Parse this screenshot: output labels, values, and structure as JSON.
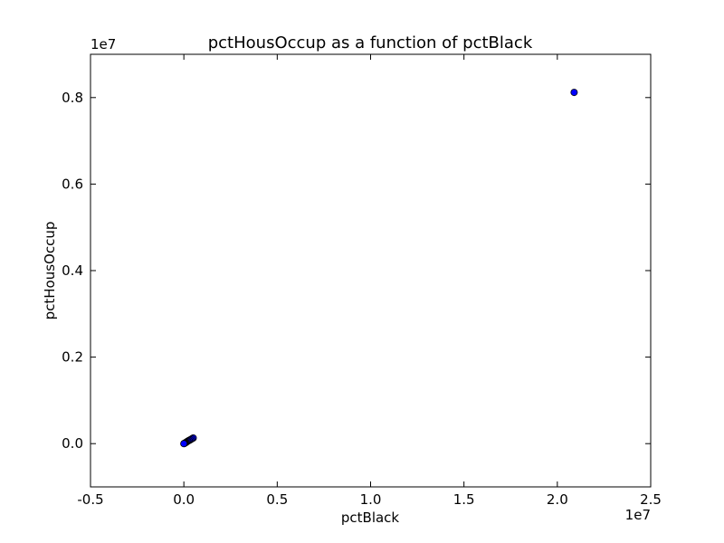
{
  "chart_data": {
    "type": "scatter",
    "title": "pctHousOccup as a function of pctBlack",
    "xlabel": "pctBlack",
    "ylabel": "pctHousOccup",
    "x_scale_label": "1e7",
    "y_scale_label": "1e7",
    "x_scale": 10000000,
    "y_scale": 10000000,
    "xlim": [
      -5000000,
      25000000
    ],
    "ylim": [
      -1000000,
      9000000
    ],
    "x_ticks": [
      -0.5,
      0.0,
      0.5,
      1.0,
      1.5,
      2.0,
      2.5
    ],
    "y_ticks": [
      0.0,
      0.2,
      0.4,
      0.6,
      0.8
    ],
    "grid": false,
    "marker_color": "#0000ff",
    "points": [
      {
        "x": 20900000,
        "y": 8120000
      },
      {
        "x": 500000,
        "y": 130000
      },
      {
        "x": 420000,
        "y": 110000
      },
      {
        "x": 350000,
        "y": 90000
      },
      {
        "x": 280000,
        "y": 75000
      },
      {
        "x": 220000,
        "y": 60000
      },
      {
        "x": 170000,
        "y": 45000
      },
      {
        "x": 120000,
        "y": 30000
      },
      {
        "x": 80000,
        "y": 20000
      },
      {
        "x": 50000,
        "y": 10000
      },
      {
        "x": 30000,
        "y": 5000
      },
      {
        "x": 10000,
        "y": 2000
      },
      {
        "x": 0,
        "y": 0
      }
    ]
  }
}
